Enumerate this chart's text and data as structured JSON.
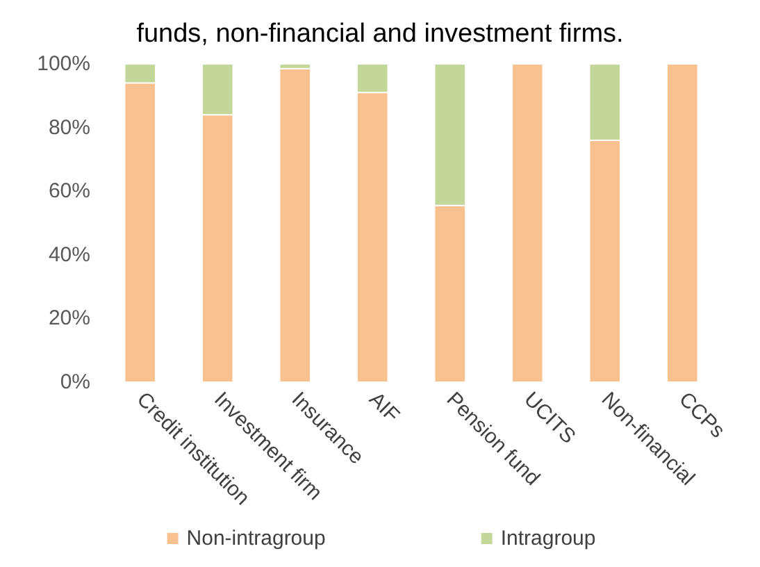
{
  "chart_data": {
    "type": "bar",
    "title": "funds, non-financial and investment firms.",
    "categories": [
      "Credit institution",
      "Investment firm",
      "Insurance",
      "AIF",
      "Pension fund",
      "UCITS",
      "Non-financial",
      "CCPs"
    ],
    "series": [
      {
        "name": "Non-intragroup",
        "color": "#f9c090",
        "values": [
          94,
          84,
          98.5,
          91,
          55.5,
          100,
          76,
          100
        ]
      },
      {
        "name": "Intragroup",
        "color": "#c4d79b",
        "values": [
          6,
          16,
          1.5,
          9,
          44.5,
          null,
          24,
          null
        ]
      }
    ],
    "stacked": true,
    "ylim": [
      0,
      100
    ],
    "yticks": [
      {
        "value": 0,
        "label": "0%"
      },
      {
        "value": 20,
        "label": "20%"
      },
      {
        "value": 40,
        "label": "40%"
      },
      {
        "value": 60,
        "label": "60%"
      },
      {
        "value": 80,
        "label": "80%"
      },
      {
        "value": 100,
        "label": "100%"
      }
    ],
    "grid": false,
    "legend": "bottom"
  }
}
